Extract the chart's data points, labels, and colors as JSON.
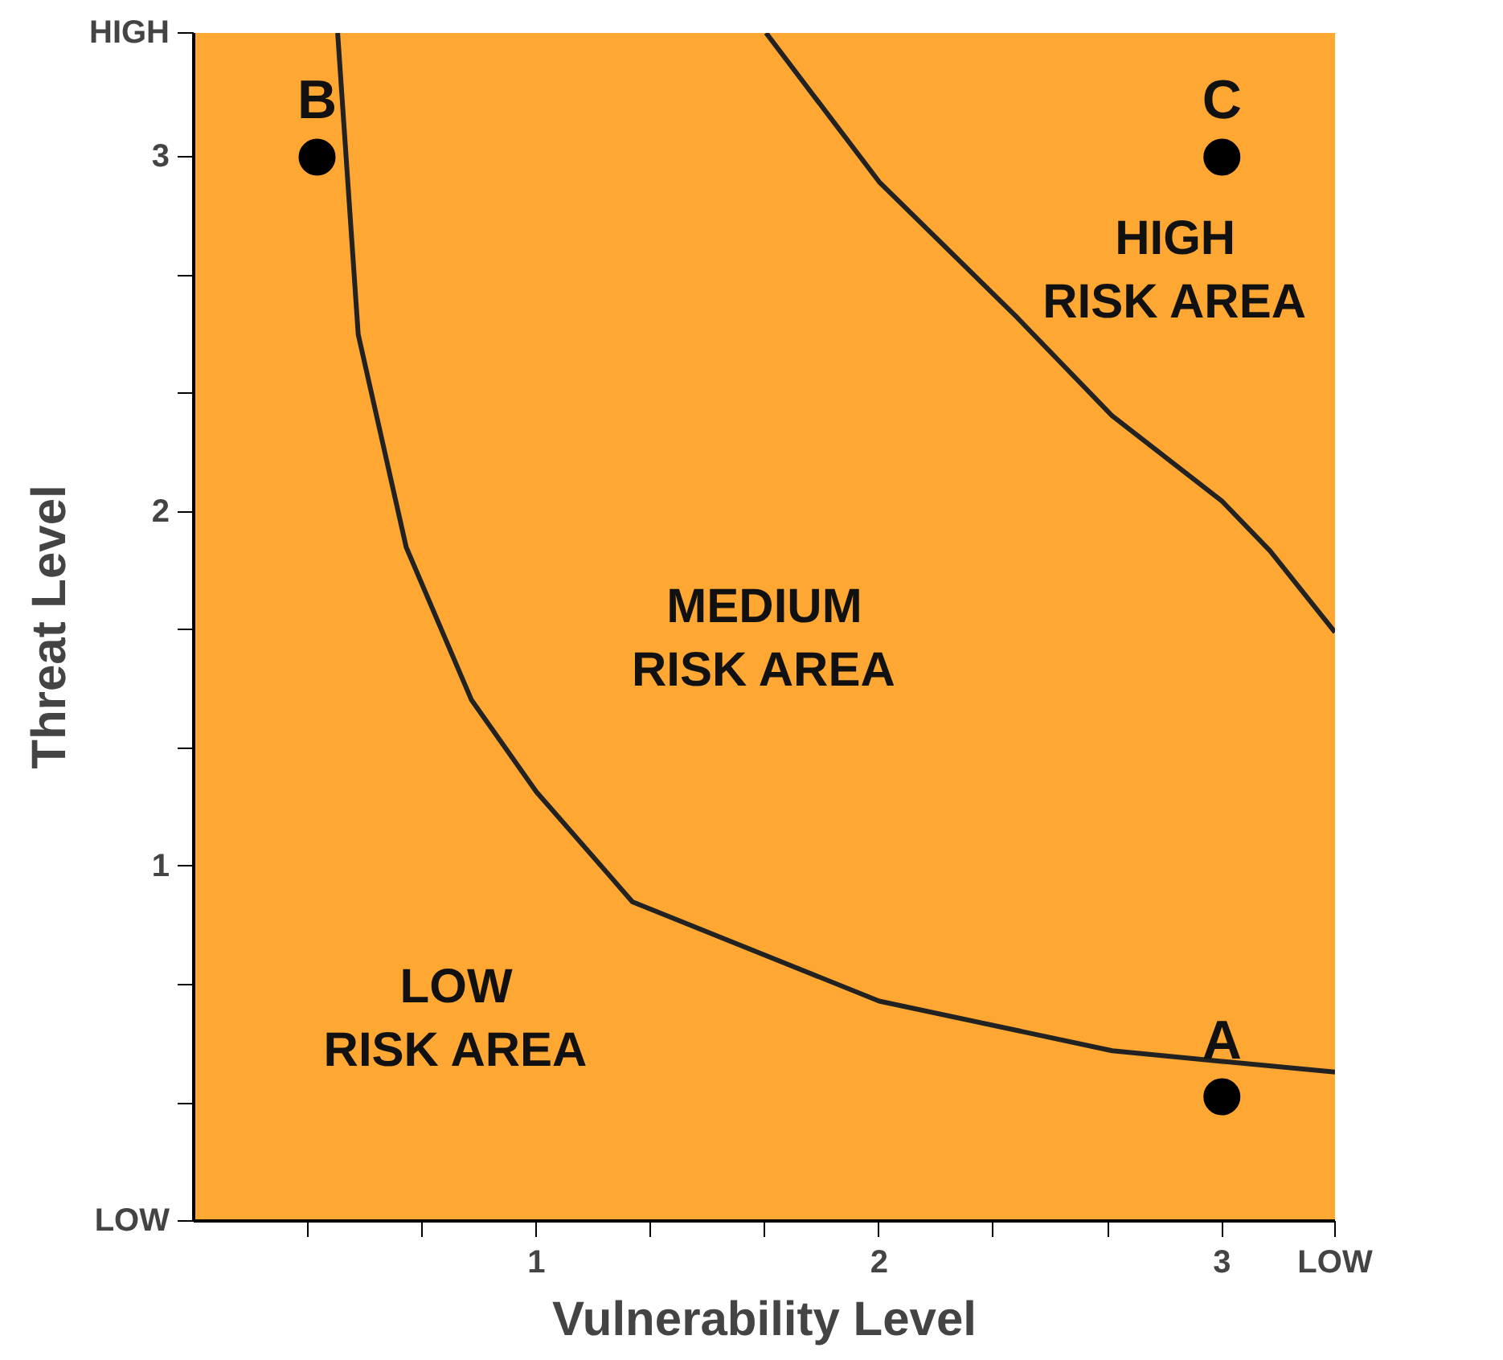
{
  "chart_data": {
    "type": "scatter",
    "xlabel": "Vulnerability Level",
    "ylabel": "Threat Level",
    "xlim": [
      0,
      3.33
    ],
    "ylim": [
      0,
      3.35
    ],
    "xticks": [
      {
        "value": 0.333,
        "label": null
      },
      {
        "value": 0.667,
        "label": null
      },
      1,
      {
        "value": 1.333,
        "label": null
      },
      {
        "value": 1.667,
        "label": null
      },
      2,
      {
        "value": 2.333,
        "label": null
      },
      {
        "value": 2.667,
        "label": null
      },
      3,
      {
        "value": 3.33,
        "label": "LOW"
      }
    ],
    "yticks": [
      {
        "value": 0,
        "label": "LOW"
      },
      {
        "value": 0.333,
        "label": null
      },
      {
        "value": 0.667,
        "label": null
      },
      1,
      {
        "value": 1.333,
        "label": null
      },
      {
        "value": 1.667,
        "label": null
      },
      2,
      {
        "value": 2.333,
        "label": null
      },
      {
        "value": 2.667,
        "label": null
      },
      3,
      {
        "value": 3.35,
        "label": "HIGH"
      }
    ],
    "marker": "circle",
    "series": [
      {
        "type": "line",
        "marker": "none",
        "color": "#222222",
        "x": [
          0.42,
          0.48,
          0.62,
          0.81,
          1.0,
          1.28,
          2.0,
          2.68,
          3.0,
          3.33
        ],
        "values": [
          3.35,
          2.5,
          1.9,
          1.47,
          1.21,
          0.9,
          0.62,
          0.48,
          0.45,
          0.42
        ]
      },
      {
        "type": "line",
        "marker": "none",
        "color": "#222222",
        "x": [
          1.67,
          2.0,
          2.4,
          2.68,
          3.0,
          3.14,
          3.33
        ],
        "values": [
          3.35,
          2.93,
          2.55,
          2.27,
          2.03,
          1.89,
          1.66
        ]
      },
      {
        "color": "#000000",
        "x": [
          3.0,
          0.36,
          3.0
        ],
        "values": [
          0.35,
          3.0,
          3.0
        ],
        "value_labels": [
          "A",
          "B",
          "C"
        ]
      }
    ],
    "annotations": [
      "LOW\nRISK AREA",
      "MEDIUM\nRISK AREA",
      "HIGH\nRISK AREA"
    ]
  }
}
